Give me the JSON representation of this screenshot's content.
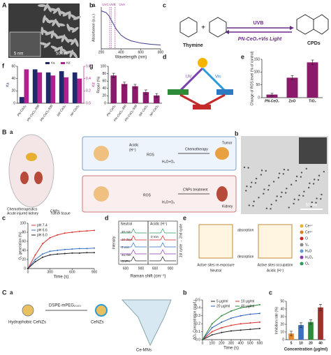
{
  "panel_labels": [
    "A",
    "a",
    "b",
    "c",
    "d",
    "e",
    "f",
    "g",
    "B",
    "a",
    "b",
    "c",
    "d",
    "e",
    "C",
    "a",
    "b",
    "c"
  ],
  "micrograph_Aa": {
    "scale_inset": "5 nm",
    "scale": "50 nm"
  },
  "scheme_Ac": {
    "left": "Thymine",
    "right": "CPDs",
    "top": "UVB",
    "bottom": "PN-CeO₂+Vis Light"
  },
  "scheme_Ad": {
    "labels": [
      "UV",
      "Vis"
    ]
  },
  "scheme_Ba": {
    "labels": [
      "Chemotherapeutics",
      "CNPs",
      "Acute injured kidney",
      "Tumor tissue",
      "Tumor",
      "Kidney",
      "Chemotherapy",
      "CNPs treatment",
      "Acidic",
      "(H⁺)",
      "ROS",
      "H₂O+O₂",
      "ROS",
      "H₂O+O₂"
    ]
  },
  "micrograph_Bb": {
    "scale": "50 nm"
  },
  "raman_Bd": {
    "neutral": "Neutral",
    "acidic": "Acidic (H⁺)",
    "ylabel": "Intensity",
    "xlabel": "Raman shift (cm⁻¹)",
    "xticks": [
      "600",
      "900",
      "600",
      "900"
    ],
    "traces": [
      "45 min",
      "10 days",
      "0 min",
      "45 min",
      "0 min",
      "CNPs"
    ],
    "cycles": "1st cycle → 2nd cycle"
  },
  "scheme_Be": {
    "absorption": "absorption",
    "desorption": "desorption",
    "left_title": "Active sites re-exposure",
    "left_sub": "Neutral",
    "right_title": "Active sites occupation",
    "right_sub": "Acidic (H⁺)",
    "legend": [
      "Ce⁴⁺",
      "Ce³⁺",
      "O",
      "Vₒ",
      "H₂O",
      "H₂O₂",
      "O₂"
    ]
  },
  "scheme_Ca": {
    "labels": [
      "Hydrophobic CeNZs",
      "DSPE-mPEG₂₀₀₀",
      "CeNZs",
      "Ce-MNs"
    ]
  },
  "chart_data": [
    {
      "type": "line",
      "xlabel": "Wavelength (nm)",
      "ylabel": "Absorbance (a.u.)",
      "annotations": [
        "UVC",
        "UVB",
        "UVA"
      ],
      "x": [
        200,
        250,
        280,
        300,
        350,
        400,
        450,
        500,
        600,
        700,
        800
      ],
      "series": [
        {
          "name": "PN-CeO₂",
          "color": "#3a3a8c",
          "values": [
            1.0,
            0.95,
            0.86,
            0.76,
            0.52,
            0.36,
            0.27,
            0.21,
            0.15,
            0.12,
            0.1
          ]
        }
      ],
      "xlim": [
        200,
        800
      ],
      "xticks": [
        200,
        400,
        600,
        800
      ],
      "ylim": [
        0,
        1.1
      ],
      "yticks": []
    },
    {
      "type": "bar",
      "ylabel": "Change of ROS level (% of control)",
      "categories": [
        "PN-CeO₂",
        "ZnO",
        "TiO₂"
      ],
      "values": [
        12,
        78,
        138
      ],
      "errors": [
        5,
        8,
        9
      ],
      "color": "#8b1a6b",
      "ylim": [
        0,
        150
      ],
      "yticks": [
        0,
        50,
        100,
        150
      ]
    },
    {
      "type": "bar",
      "categories": [
        "PN-CeO₂",
        "PN-CeO₂-300",
        "PN-CeO₂-500",
        "NR-CeO₂",
        "NP-CeO₂"
      ],
      "series": [
        {
          "name": "Ka",
          "color": "#1f2a6b",
          "values": [
            10,
            55,
            50,
            52,
            50
          ]
        },
        {
          "name": "Kd",
          "color": "#b0208e",
          "axis": "y2",
          "values": [
            0.55,
            0.5,
            0.45,
            0.42,
            0.4
          ]
        }
      ],
      "ylabel": "Ka",
      "y2label": "Kd",
      "ylim": [
        0,
        60
      ],
      "yticks": [
        0,
        20,
        40,
        60
      ],
      "y2lim": [
        0,
        0.6
      ],
      "y2ticks": [
        {
          "value": 0,
          "label": "0.0"
        },
        0.2,
        0.4,
        0.6
      ]
    },
    {
      "type": "bar",
      "ylabel": "Repair (%)",
      "categories": [
        "PN-CeO₂",
        "PN-CeO₂-300",
        "PN-CeO₂-500",
        "NR-CeO₂",
        "NP-CeO₂"
      ],
      "values": [
        75,
        52,
        46,
        30,
        21
      ],
      "errors": [
        6,
        5,
        5,
        6,
        5
      ],
      "color": "#8b1a6b",
      "ylim": [
        0,
        100
      ],
      "yticks": [
        0,
        20,
        40,
        60,
        80,
        100
      ]
    },
    {
      "type": "line",
      "xlabel": "Time (s)",
      "ylabel": "O₂ generation (%)",
      "x": [
        0,
        100,
        200,
        300,
        400,
        500,
        600,
        700,
        800,
        900
      ],
      "series": [
        {
          "name": "pH 7.4",
          "color": "#e0312c",
          "values": [
            0,
            30,
            55,
            68,
            74,
            78,
            80,
            82,
            83,
            84
          ]
        },
        {
          "name": "pH 6.6",
          "color": "#3b6fc4",
          "values": [
            0,
            20,
            32,
            38,
            40,
            42,
            43,
            44,
            44,
            45
          ]
        },
        {
          "name": "pH 6.0",
          "color": "#222222",
          "values": [
            0,
            15,
            25,
            30,
            32,
            33,
            34,
            34,
            35,
            35
          ]
        }
      ],
      "xlim": [
        0,
        900
      ],
      "xticks": [
        0,
        300,
        600,
        900
      ],
      "ylim": [
        0,
        100
      ],
      "yticks": [
        0,
        20,
        40,
        60,
        80,
        100
      ]
    },
    {
      "type": "line",
      "xlabel": "Time (s)",
      "ylabel": "ΔO₂ Concentration (mg/L)",
      "x": [
        0,
        100,
        200,
        300,
        400,
        500,
        600
      ],
      "series": [
        {
          "name": "5 μg/ml",
          "color": "#222222",
          "values": [
            0,
            0.06,
            0.09,
            0.11,
            0.12,
            0.13,
            0.14
          ]
        },
        {
          "name": "10 μg/ml",
          "color": "#d8302a",
          "values": [
            0,
            0.1,
            0.15,
            0.18,
            0.2,
            0.21,
            0.22
          ]
        },
        {
          "name": "20 μg/ml",
          "color": "#2f5fbf",
          "values": [
            0,
            0.15,
            0.22,
            0.27,
            0.3,
            0.32,
            0.33
          ]
        },
        {
          "name": "40 μg/ml",
          "color": "#2e8b3a",
          "values": [
            0,
            0.2,
            0.3,
            0.36,
            0.4,
            0.42,
            0.44
          ]
        }
      ],
      "xlim": [
        0,
        600
      ],
      "xticks": [
        0,
        100,
        200,
        300,
        400,
        500,
        600
      ],
      "ylim": [
        0,
        0.5
      ],
      "yticks": [
        {
          "value": 0,
          "label": "0.0"
        },
        0.1,
        0.2,
        0.3,
        0.4,
        0.5
      ]
    },
    {
      "type": "bar",
      "xlabel": "Concentration (μg/ml)",
      "ylabel": "Inhibition rate (%)",
      "categories": [
        "5",
        "10",
        "20",
        "40"
      ],
      "values": [
        8,
        19,
        23,
        42
      ],
      "errors": [
        3,
        3,
        3,
        4
      ],
      "colors": [
        "#e58a2e",
        "#3b6fc4",
        "#2e8b3a",
        "#a0302a"
      ],
      "ylim": [
        0,
        50
      ],
      "yticks": [
        0,
        10,
        20,
        30,
        40,
        50
      ]
    }
  ]
}
